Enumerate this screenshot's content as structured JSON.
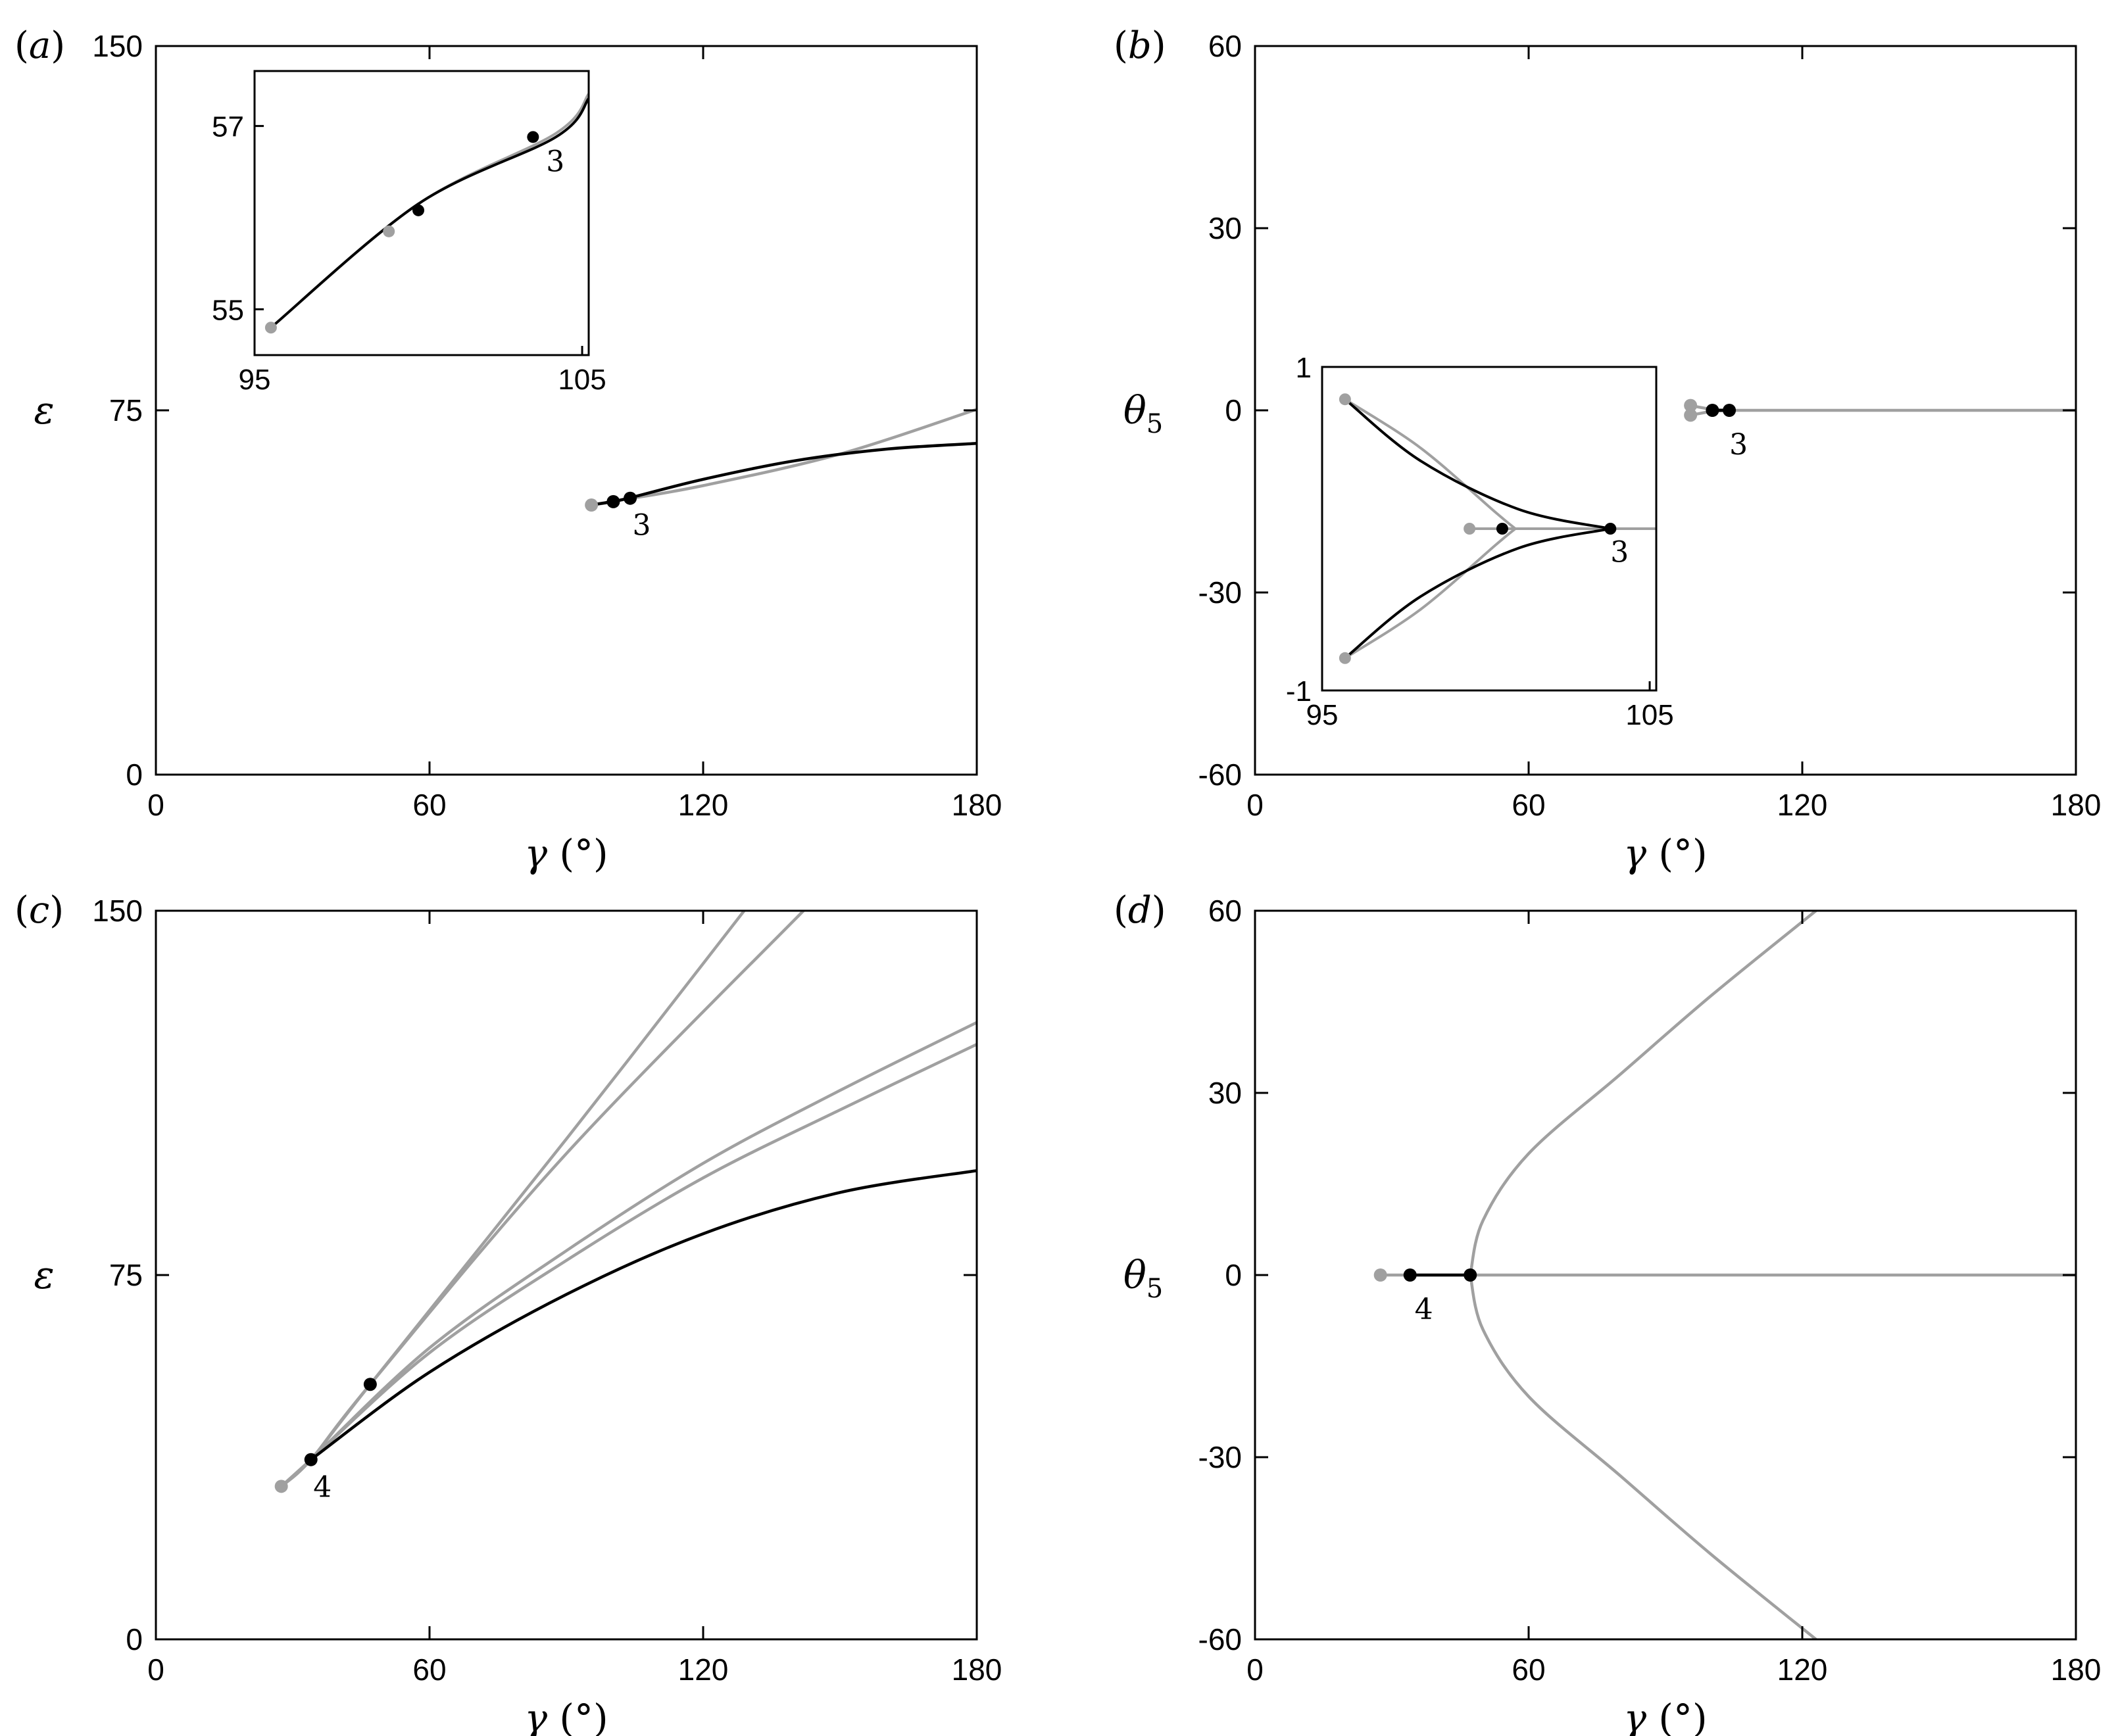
{
  "colors": {
    "black": "#000000",
    "grey": "#a0a0a0",
    "axes": "#000000"
  },
  "chart_data": [
    {
      "type": "line",
      "panel": "(a)",
      "xlabel": "γ (°)",
      "ylabel": "ε",
      "xlim": [
        0,
        180
      ],
      "ylim": [
        0,
        150
      ],
      "xticks": [
        "0",
        "60",
        "120",
        "180"
      ],
      "yticks": [
        "0",
        "75",
        "150"
      ],
      "series": [
        {
          "color": "grey",
          "points": [
            [
              95.5,
              55.5
            ],
            [
              100.5,
              56.2
            ],
            [
              102.5,
              56.6
            ],
            [
              120,
              59.5
            ],
            [
              150,
              66.0
            ],
            [
              180,
              75.2
            ]
          ]
        },
        {
          "color": "black",
          "points": [
            [
              96,
              55.6
            ],
            [
              100,
              56.2
            ],
            [
              104,
              57.0
            ],
            [
              120,
              60.8
            ],
            [
              140,
              64.6
            ],
            [
              160,
              67.0
            ],
            [
              180,
              68.2
            ]
          ]
        }
      ],
      "markers": [
        {
          "color": "grey",
          "x": 95.5,
          "y": 55.5
        },
        {
          "color": "black",
          "x": 100.3,
          "y": 56.2
        },
        {
          "color": "black",
          "x": 104.0,
          "y": 56.9
        }
      ],
      "annotations": [
        {
          "text": "3",
          "x": 104.5,
          "y": 51.5
        }
      ],
      "inset": {
        "xlim": [
          95,
          105.2
        ],
        "ylim": [
          54.5,
          57.6
        ],
        "xticks": [
          "95",
          "105"
        ],
        "yticks": [
          "55",
          "57"
        ],
        "series": [
          {
            "color": "grey",
            "points": [
              [
                95.5,
                54.8
              ],
              [
                100,
                56.15
              ],
              [
                104.2,
                56.92
              ],
              [
                105.2,
                57.35
              ]
            ]
          },
          {
            "color": "black",
            "points": [
              [
                95.5,
                54.8
              ],
              [
                100,
                56.15
              ],
              [
                104.2,
                56.88
              ],
              [
                105.2,
                57.3
              ]
            ]
          }
        ],
        "markers": [
          {
            "color": "grey",
            "x": 95.5,
            "y": 54.8
          },
          {
            "color": "grey",
            "x": 99.1,
            "y": 55.85
          },
          {
            "color": "black",
            "x": 100.0,
            "y": 56.08
          },
          {
            "color": "black",
            "x": 103.5,
            "y": 56.88
          }
        ],
        "annotations": [
          {
            "text": "3",
            "x": 103.9,
            "y": 56.62
          }
        ]
      }
    },
    {
      "type": "line",
      "panel": "(b)",
      "xlabel": "γ (°)",
      "ylabel": "θ5",
      "xlim": [
        0,
        180
      ],
      "ylim": [
        -60,
        60
      ],
      "xticks": [
        "0",
        "60",
        "120",
        "180"
      ],
      "yticks": [
        "-60",
        "-30",
        "0",
        "30",
        "60"
      ],
      "series": [
        {
          "color": "grey",
          "points": [
            [
              104,
              0
            ],
            [
              180,
              0
            ]
          ]
        },
        {
          "color": "grey",
          "points": [
            [
              95.5,
              0.8
            ],
            [
              100,
              0.2
            ],
            [
              104,
              0
            ]
          ]
        },
        {
          "color": "grey",
          "points": [
            [
              95.5,
              -0.8
            ],
            [
              100,
              -0.2
            ],
            [
              104,
              0
            ]
          ]
        },
        {
          "color": "black",
          "points": [
            [
              100,
              0
            ],
            [
              104,
              0
            ]
          ]
        }
      ],
      "markers": [
        {
          "color": "grey",
          "x": 95.5,
          "y": 0.8
        },
        {
          "color": "grey",
          "x": 95.5,
          "y": -0.8
        },
        {
          "color": "black",
          "x": 100.3,
          "y": 0
        },
        {
          "color": "black",
          "x": 104.0,
          "y": 0
        }
      ],
      "annotations": [
        {
          "text": "3",
          "x": 104.0,
          "y": -5.5
        }
      ],
      "inset": {
        "xlim": [
          95,
          105.2
        ],
        "ylim": [
          -1,
          1
        ],
        "xticks": [
          "95",
          "105"
        ],
        "yticks": [
          "-1",
          "1"
        ],
        "series": [
          {
            "color": "grey",
            "points": [
              [
                99.5,
                0
              ],
              [
                105.2,
                0
              ]
            ]
          },
          {
            "color": "grey",
            "points": [
              [
                95.7,
                0.8
              ],
              [
                98.0,
                0.5
              ],
              [
                100.3,
                0.1
              ],
              [
                100.9,
                0
              ]
            ]
          },
          {
            "color": "grey",
            "points": [
              [
                95.7,
                -0.8
              ],
              [
                98.0,
                -0.5
              ],
              [
                100.3,
                -0.1
              ],
              [
                100.9,
                0
              ]
            ]
          },
          {
            "color": "black",
            "points": [
              [
                95.7,
                0.8
              ],
              [
                98.0,
                0.42
              ],
              [
                101,
                0.12
              ],
              [
                103.8,
                0
              ]
            ]
          },
          {
            "color": "black",
            "points": [
              [
                95.7,
                -0.8
              ],
              [
                98.0,
                -0.42
              ],
              [
                101,
                -0.12
              ],
              [
                103.8,
                0
              ]
            ]
          }
        ],
        "markers": [
          {
            "color": "grey",
            "x": 95.7,
            "y": 0.8
          },
          {
            "color": "grey",
            "x": 95.7,
            "y": -0.8
          },
          {
            "color": "grey",
            "x": 99.5,
            "y": 0
          },
          {
            "color": "black",
            "x": 100.5,
            "y": 0
          },
          {
            "color": "black",
            "x": 103.8,
            "y": 0
          }
        ],
        "annotations": [
          {
            "text": "3",
            "x": 103.8,
            "y": -0.14
          }
        ]
      }
    },
    {
      "type": "line",
      "panel": "(c)",
      "xlabel": "γ (°)",
      "ylabel": "ε",
      "xlim": [
        0,
        180
      ],
      "ylim": [
        0,
        150
      ],
      "xticks": [
        "0",
        "60",
        "120",
        "180"
      ],
      "yticks": [
        "0",
        "75",
        "150"
      ],
      "series": [
        {
          "color": "grey",
          "points": [
            [
              27.5,
              31.5
            ],
            [
              34,
              37
            ],
            [
              47,
              52.5
            ],
            [
              90,
              103
            ],
            [
              129,
              150
            ]
          ]
        },
        {
          "color": "grey",
          "points": [
            [
              27.5,
              31.5
            ],
            [
              34,
              37
            ],
            [
              47,
              52.5
            ],
            [
              90,
              100
            ],
            [
              142,
              150
            ]
          ]
        },
        {
          "color": "grey",
          "points": [
            [
              27.5,
              31.5
            ],
            [
              34,
              37
            ],
            [
              60,
              60
            ],
            [
              90,
              80
            ],
            [
              120,
              98
            ],
            [
              150,
              113
            ],
            [
              180,
              127
            ]
          ]
        },
        {
          "color": "grey",
          "points": [
            [
              27.5,
              31.5
            ],
            [
              34,
              37
            ],
            [
              60,
              59
            ],
            [
              90,
              78
            ],
            [
              120,
              95
            ],
            [
              150,
              109
            ],
            [
              180,
              122.5
            ]
          ]
        },
        {
          "color": "black",
          "points": [
            [
              34,
              37
            ],
            [
              60,
              55
            ],
            [
              90,
              71
            ],
            [
              120,
              83.5
            ],
            [
              150,
              92
            ],
            [
              180,
              96.5
            ]
          ]
        }
      ],
      "markers": [
        {
          "color": "grey",
          "x": 27.5,
          "y": 31.5
        },
        {
          "color": "black",
          "x": 34,
          "y": 37
        },
        {
          "color": "black",
          "x": 47,
          "y": 52.5
        }
      ],
      "annotations": [
        {
          "text": "4",
          "x": 34.5,
          "y": 31.5
        }
      ]
    },
    {
      "type": "line",
      "panel": "(d)",
      "xlabel": "γ (°)",
      "ylabel": "θ5",
      "xlim": [
        0,
        180
      ],
      "ylim": [
        -60,
        60
      ],
      "xticks": [
        "0",
        "60",
        "120",
        "180"
      ],
      "yticks": [
        "-60",
        "-30",
        "0",
        "30",
        "60"
      ],
      "series": [
        {
          "color": "grey",
          "points": [
            [
              27.5,
              0
            ],
            [
              180,
              0
            ]
          ]
        },
        {
          "color": "grey",
          "points": [
            [
              47.2,
              0
            ],
            [
              50,
              9
            ],
            [
              60,
              20
            ],
            [
              80,
              33
            ],
            [
              100,
              46
            ],
            [
              123,
              60
            ]
          ]
        },
        {
          "color": "grey",
          "points": [
            [
              47.2,
              0
            ],
            [
              50,
              -9
            ],
            [
              60,
              -20
            ],
            [
              80,
              -33
            ],
            [
              100,
              -46
            ],
            [
              123,
              -60
            ]
          ]
        },
        {
          "color": "black",
          "points": [
            [
              34,
              0
            ],
            [
              47.2,
              0
            ]
          ]
        }
      ],
      "markers": [
        {
          "color": "grey",
          "x": 27.5,
          "y": 0
        },
        {
          "color": "black",
          "x": 34,
          "y": 0
        },
        {
          "color": "black",
          "x": 47.2,
          "y": 0
        }
      ],
      "annotations": [
        {
          "text": "4",
          "x": 35,
          "y": -5.5
        }
      ]
    }
  ]
}
